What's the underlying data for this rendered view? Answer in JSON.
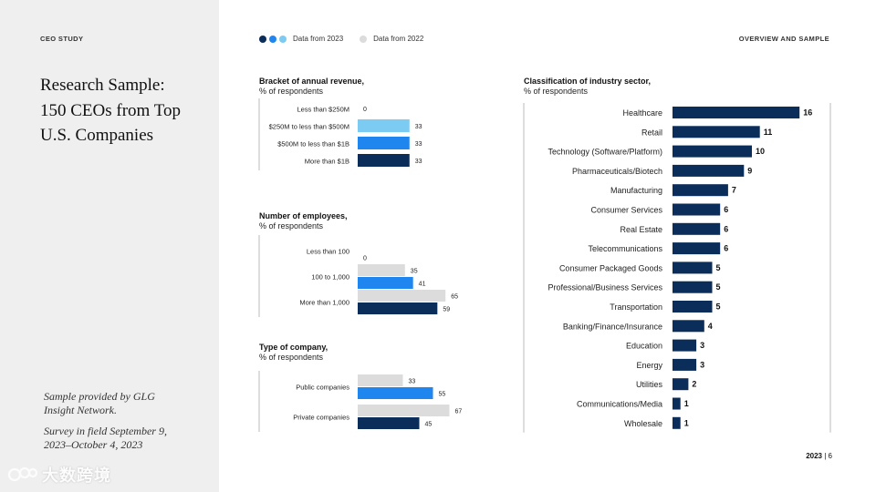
{
  "sidebar": {
    "study_label": "CEO STUDY",
    "title_lines": [
      "Research Sample:",
      "150 CEOs from Top",
      "U.S. Companies"
    ],
    "note1_lines": [
      "Sample provided by GLG",
      "Insight Network."
    ],
    "note2_lines": [
      "Survey in field September 9,",
      "2023–October 4, 2023"
    ],
    "watermark": "大数跨境"
  },
  "header": {
    "legend_2023": "Data from 2023",
    "legend_2022": "Data from 2022",
    "section_label": "OVERVIEW AND SAMPLE"
  },
  "colors": {
    "navy": "#0b2d5a",
    "blue": "#1f86ef",
    "light_blue": "#7ccbf2",
    "gray": "#dcdcdc"
  },
  "footer": {
    "year": "2023",
    "page": "6"
  },
  "chart_data": [
    {
      "id": "revenue",
      "type": "bar",
      "orientation": "horizontal",
      "title": "Bracket of annual revenue,",
      "subtitle": "% of respondents",
      "categories": [
        "Less than $250M",
        "$250M to less than $500M",
        "$500M to less than $1B",
        "More than $1B"
      ],
      "series": [
        {
          "name": "Data from 2023",
          "values": [
            0,
            33,
            33,
            33
          ],
          "colors": [
            "light_blue",
            "light_blue",
            "blue",
            "navy"
          ]
        }
      ]
    },
    {
      "id": "employees",
      "type": "bar",
      "orientation": "horizontal",
      "title": "Number of employees,",
      "subtitle": "% of respondents",
      "categories": [
        "Less than 100",
        "100 to 1,000",
        "More than 1,000"
      ],
      "series": [
        {
          "name": "Data from 2022",
          "values": [
            null,
            35,
            65
          ],
          "color": "gray"
        },
        {
          "name": "Data from 2023",
          "values": [
            0,
            41,
            59
          ],
          "colors": [
            "light_blue",
            "blue",
            "navy"
          ]
        }
      ]
    },
    {
      "id": "company_type",
      "type": "bar",
      "orientation": "horizontal",
      "title": "Type of company,",
      "subtitle": "% of respondents",
      "categories": [
        "Public companies",
        "Private companies"
      ],
      "series": [
        {
          "name": "Data from 2022",
          "values": [
            33,
            67
          ],
          "color": "gray"
        },
        {
          "name": "Data from 2023",
          "values": [
            55,
            45
          ],
          "colors": [
            "blue",
            "navy"
          ]
        }
      ]
    },
    {
      "id": "industry",
      "type": "bar",
      "orientation": "horizontal",
      "title": "Classification of industry sector,",
      "subtitle": "% of respondents",
      "categories": [
        "Healthcare",
        "Retail",
        "Technology (Software/Platform)",
        "Pharmaceuticals/Biotech",
        "Manufacturing",
        "Consumer Services",
        "Real Estate",
        "Telecommunications",
        "Consumer Packaged Goods",
        "Professional/Business Services",
        "Transportation",
        "Banking/Finance/Insurance",
        "Education",
        "Energy",
        "Utilities",
        "Communications/Media",
        "Wholesale"
      ],
      "series": [
        {
          "name": "Data from 2023",
          "values": [
            16,
            11,
            10,
            9,
            7,
            6,
            6,
            6,
            5,
            5,
            5,
            4,
            3,
            3,
            2,
            1,
            1
          ],
          "color": "navy"
        }
      ]
    }
  ]
}
